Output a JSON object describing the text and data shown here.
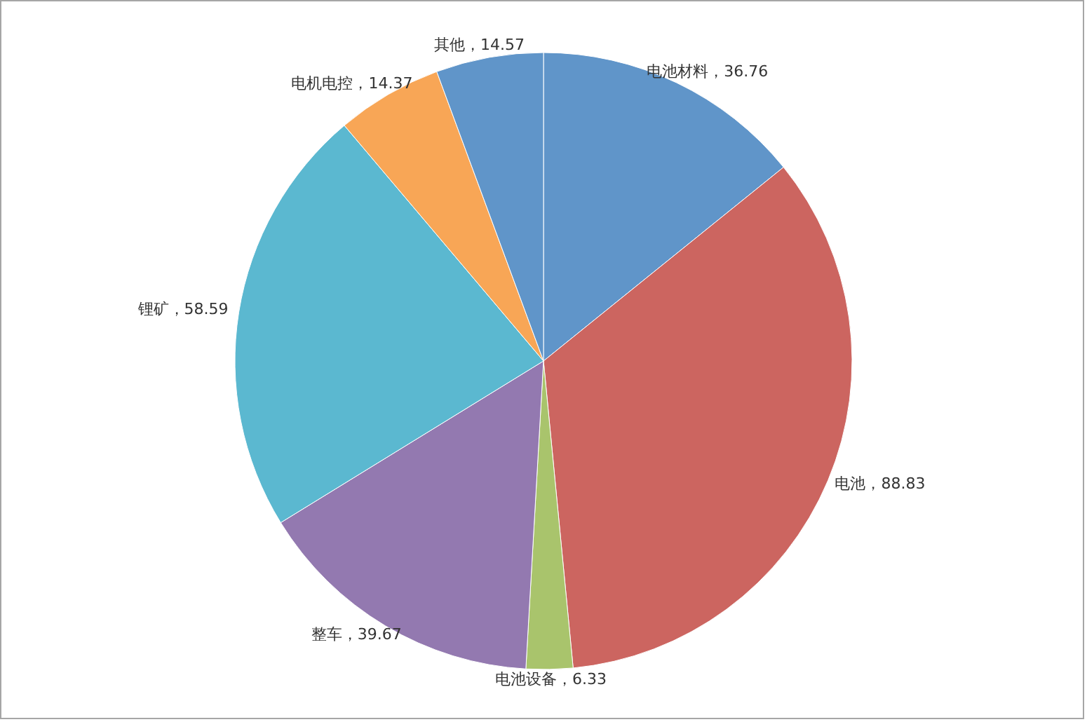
{
  "chart_data": {
    "type": "pie",
    "categories": [
      "电池材料",
      "电池",
      "电池设备",
      "整车",
      "锂矿",
      "电机电控",
      "其他"
    ],
    "values": [
      36.76,
      88.83,
      6.33,
      39.67,
      58.59,
      14.37,
      14.57
    ],
    "value_labels": [
      "，36.76",
      "，88.83",
      "，6.33",
      "，39.67",
      "，58.59",
      "，14.37",
      "，14.57"
    ],
    "colors": [
      "#6095c9",
      "#cc6560",
      "#a9c46c",
      "#9379b0",
      "#5bb8d0",
      "#f8a656",
      "#6095c9"
    ]
  }
}
